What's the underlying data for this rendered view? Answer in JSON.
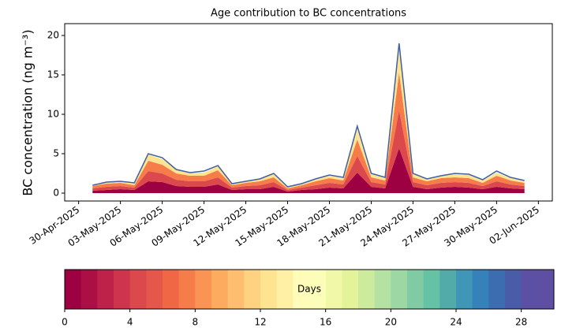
{
  "chart_data": {
    "type": "area",
    "title": "Age contribution to BC concentrations",
    "y_label": "BC concentration (ng m⁻³)",
    "x": [
      "2025-05-01",
      "2025-05-02",
      "2025-05-03",
      "2025-05-04",
      "2025-05-05",
      "2025-05-06",
      "2025-05-07",
      "2025-05-08",
      "2025-05-09",
      "2025-05-10",
      "2025-05-11",
      "2025-05-12",
      "2025-05-13",
      "2025-05-14",
      "2025-05-15",
      "2025-05-16",
      "2025-05-17",
      "2025-05-18",
      "2025-05-19",
      "2025-05-20",
      "2025-05-21",
      "2025-05-22",
      "2025-05-23",
      "2025-05-24",
      "2025-05-25",
      "2025-05-26",
      "2025-05-27",
      "2025-05-28",
      "2025-05-29",
      "2025-05-30",
      "2025-05-31",
      "2025-06-01"
    ],
    "series": [
      {
        "type": "area",
        "color": "#9e0142",
        "values": [
          0.3,
          0.4,
          0.5,
          0.4,
          1.5,
          1.4,
          0.9,
          0.8,
          0.8,
          1.1,
          0.4,
          0.5,
          0.5,
          0.8,
          0.2,
          0.4,
          0.5,
          0.7,
          0.6,
          2.6,
          0.8,
          0.6,
          5.7,
          0.8,
          0.5,
          0.7,
          0.8,
          0.7,
          0.5,
          0.8,
          0.6,
          0.5
        ]
      },
      {
        "type": "area",
        "color": "#dc494c",
        "values": [
          0.3,
          0.4,
          0.4,
          0.3,
          1.3,
          1.1,
          0.8,
          0.7,
          0.7,
          0.9,
          0.3,
          0.4,
          0.5,
          0.6,
          0.2,
          0.3,
          0.5,
          0.6,
          0.5,
          2.1,
          0.6,
          0.5,
          4.8,
          0.6,
          0.5,
          0.6,
          0.6,
          0.6,
          0.4,
          0.7,
          0.5,
          0.4
        ]
      },
      {
        "type": "area",
        "color": "#f67d4a",
        "values": [
          0.3,
          0.4,
          0.4,
          0.3,
          1.3,
          1.1,
          0.8,
          0.7,
          0.7,
          0.9,
          0.3,
          0.4,
          0.5,
          0.6,
          0.2,
          0.3,
          0.5,
          0.6,
          0.5,
          2.1,
          0.6,
          0.5,
          4.8,
          0.6,
          0.5,
          0.6,
          0.6,
          0.6,
          0.4,
          0.7,
          0.5,
          0.4
        ]
      },
      {
        "type": "area",
        "color": "#fee391",
        "values": [
          0.2,
          0.2,
          0.2,
          0.2,
          0.8,
          0.7,
          0.5,
          0.4,
          0.4,
          0.5,
          0.2,
          0.2,
          0.3,
          0.4,
          0.1,
          0.2,
          0.3,
          0.3,
          0.3,
          1.3,
          0.4,
          0.3,
          2.9,
          0.4,
          0.3,
          0.3,
          0.4,
          0.4,
          0.3,
          0.4,
          0.3,
          0.2
        ]
      },
      {
        "type": "line",
        "color": "#4060a0",
        "values": [
          1.0,
          1.4,
          1.5,
          1.3,
          5.0,
          4.5,
          3.0,
          2.6,
          2.8,
          3.5,
          1.2,
          1.5,
          1.8,
          2.5,
          0.8,
          1.2,
          1.8,
          2.3,
          2.0,
          8.5,
          2.5,
          2.0,
          19.0,
          2.5,
          1.8,
          2.2,
          2.5,
          2.4,
          1.7,
          2.8,
          2.0,
          1.6
        ]
      }
    ],
    "xlim": [
      "2025-04-29",
      "2025-06-03"
    ],
    "xticks": [
      {
        "value": "2025-04-30",
        "label": "30-Apr-2025"
      },
      {
        "value": "2025-05-03",
        "label": "03-May-2025"
      },
      {
        "value": "2025-05-06",
        "label": "06-May-2025"
      },
      {
        "value": "2025-05-09",
        "label": "09-May-2025"
      },
      {
        "value": "2025-05-12",
        "label": "12-May-2025"
      },
      {
        "value": "2025-05-15",
        "label": "15-May-2025"
      },
      {
        "value": "2025-05-18",
        "label": "18-May-2025"
      },
      {
        "value": "2025-05-21",
        "label": "21-May-2025"
      },
      {
        "value": "2025-05-24",
        "label": "24-May-2025"
      },
      {
        "value": "2025-05-27",
        "label": "27-May-2025"
      },
      {
        "value": "2025-05-30",
        "label": "30-May-2025"
      },
      {
        "value": "2025-06-02",
        "label": "02-Jun-2025"
      }
    ],
    "ylim": [
      -1,
      21.5
    ],
    "yticks": [
      0,
      5,
      10,
      15,
      20
    ],
    "colorbar": {
      "label": "Days",
      "lim": [
        0,
        30
      ],
      "ticks": [
        0,
        4,
        8,
        12,
        16,
        20,
        24,
        28
      ],
      "colors": [
        "#9e0142",
        "#ac0f45",
        "#bf2249",
        "#cf344d",
        "#dc494c",
        "#e5574a",
        "#ef6745",
        "#f67d4a",
        "#f99455",
        "#fcab5f",
        "#fdbf6f",
        "#fed281",
        "#fee391",
        "#fff0a6",
        "#fffbb8",
        "#fbfdb9",
        "#f1f9a9",
        "#e3f399",
        "#cdeb9d",
        "#b5e1a2",
        "#9cd7a4",
        "#80cba4",
        "#66c2a5",
        "#52aba8",
        "#3f96b7",
        "#3581b9",
        "#3c6db0",
        "#4a5ca8",
        "#5b50a3",
        "#5e4fa2"
      ]
    }
  }
}
